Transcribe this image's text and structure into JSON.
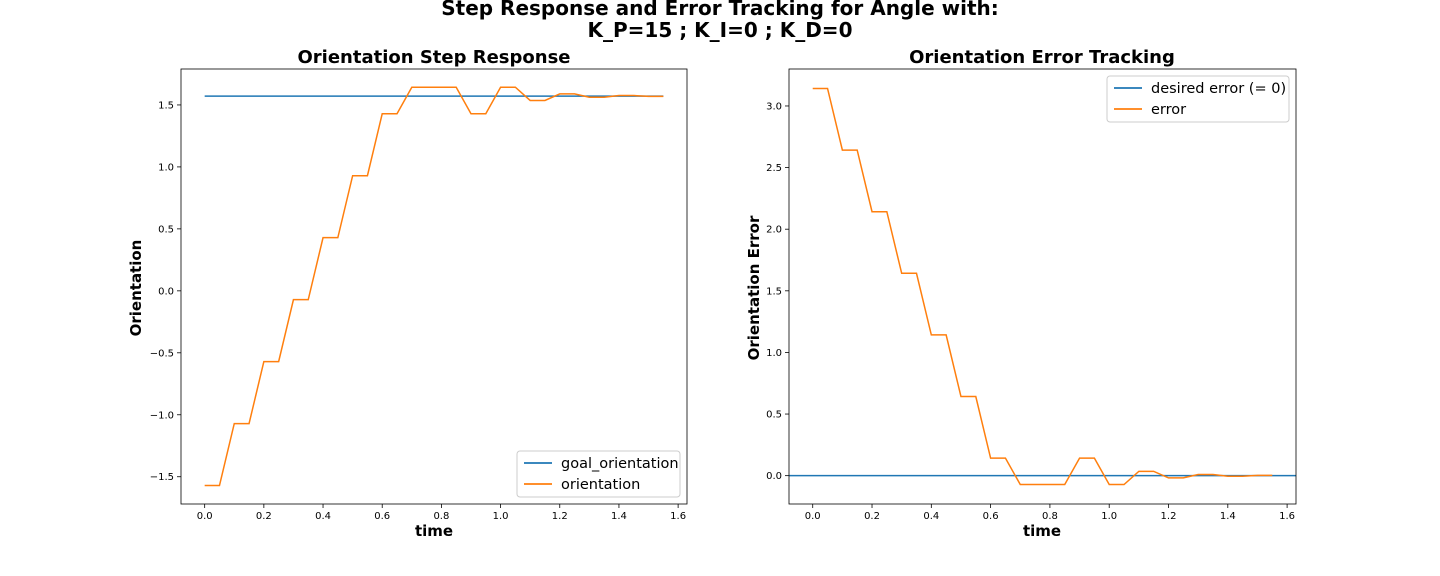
{
  "figure": {
    "title_line1": "Step Response and Error Tracking for Angle with:",
    "title_line2": "K_P=15 ; K_I=0 ; K_D=0"
  },
  "colors": {
    "blue": "#1f77b4",
    "orange": "#ff7f0e"
  },
  "chart_data": [
    {
      "type": "line",
      "title": "Orientation Step Response",
      "xlabel": "time",
      "ylabel": "Orientation",
      "xlim": [
        -0.08,
        1.63
      ],
      "ylim": [
        -1.72,
        1.79
      ],
      "xticks": [
        0.0,
        0.2,
        0.4,
        0.6,
        0.8,
        1.0,
        1.2,
        1.4,
        1.6
      ],
      "xtick_labels": [
        "0.0",
        "0.2",
        "0.4",
        "0.6",
        "0.8",
        "1.0",
        "1.2",
        "1.4",
        "1.6"
      ],
      "yticks": [
        -1.5,
        -1.0,
        -0.5,
        0.0,
        0.5,
        1.0,
        1.5
      ],
      "ytick_labels": [
        "−1.5",
        "−1.0",
        "−0.5",
        "0.0",
        "0.5",
        "1.0",
        "1.5"
      ],
      "legend_position": "lower right",
      "series": [
        {
          "name": "goal_orientation",
          "color": "#1f77b4",
          "x": [
            0.0,
            1.55
          ],
          "y": [
            1.571,
            1.571
          ]
        },
        {
          "name": "orientation",
          "color": "#ff7f0e",
          "x": [
            0.0,
            0.05,
            0.1,
            0.15,
            0.2,
            0.25,
            0.3,
            0.35,
            0.4,
            0.45,
            0.5,
            0.55,
            0.6,
            0.65,
            0.7,
            0.75,
            0.8,
            0.85,
            0.9,
            0.95,
            1.0,
            1.05,
            1.1,
            1.15,
            1.2,
            1.25,
            1.3,
            1.35,
            1.4,
            1.45,
            1.5,
            1.55
          ],
          "y": [
            -1.571,
            -1.571,
            -1.071,
            -1.071,
            -0.571,
            -0.571,
            -0.071,
            -0.071,
            0.429,
            0.429,
            0.929,
            0.929,
            1.429,
            1.429,
            1.643,
            1.643,
            1.643,
            1.643,
            1.429,
            1.429,
            1.643,
            1.643,
            1.536,
            1.536,
            1.589,
            1.589,
            1.562,
            1.562,
            1.576,
            1.576,
            1.569,
            1.569
          ]
        }
      ]
    },
    {
      "type": "line",
      "title": "Orientation Error Tracking",
      "xlabel": "time",
      "ylabel": "Orientation Error",
      "xlim": [
        -0.08,
        1.63
      ],
      "ylim": [
        -0.23,
        3.3
      ],
      "xticks": [
        0.0,
        0.2,
        0.4,
        0.6,
        0.8,
        1.0,
        1.2,
        1.4,
        1.6
      ],
      "xtick_labels": [
        "0.0",
        "0.2",
        "0.4",
        "0.6",
        "0.8",
        "1.0",
        "1.2",
        "1.4",
        "1.6"
      ],
      "yticks": [
        0.0,
        0.5,
        1.0,
        1.5,
        2.0,
        2.5,
        3.0
      ],
      "ytick_labels": [
        "0.0",
        "0.5",
        "1.0",
        "1.5",
        "2.0",
        "2.5",
        "3.0"
      ],
      "legend_position": "upper right",
      "series": [
        {
          "name": "desired error (= 0)",
          "color": "#1f77b4",
          "x": [
            -0.08,
            1.63
          ],
          "y": [
            0.0,
            0.0
          ]
        },
        {
          "name": "error",
          "color": "#ff7f0e",
          "x": [
            0.0,
            0.05,
            0.1,
            0.15,
            0.2,
            0.25,
            0.3,
            0.35,
            0.4,
            0.45,
            0.5,
            0.55,
            0.6,
            0.65,
            0.7,
            0.75,
            0.8,
            0.85,
            0.9,
            0.95,
            1.0,
            1.05,
            1.1,
            1.15,
            1.2,
            1.25,
            1.3,
            1.35,
            1.4,
            1.45,
            1.5,
            1.55
          ],
          "y": [
            3.142,
            3.142,
            2.642,
            2.642,
            2.142,
            2.142,
            1.642,
            1.642,
            1.142,
            1.142,
            0.642,
            0.642,
            0.142,
            0.142,
            -0.072,
            -0.072,
            -0.072,
            -0.072,
            0.142,
            0.142,
            -0.072,
            -0.072,
            0.035,
            0.035,
            -0.018,
            -0.018,
            0.009,
            0.009,
            -0.005,
            -0.005,
            0.002,
            0.002
          ]
        }
      ]
    }
  ]
}
